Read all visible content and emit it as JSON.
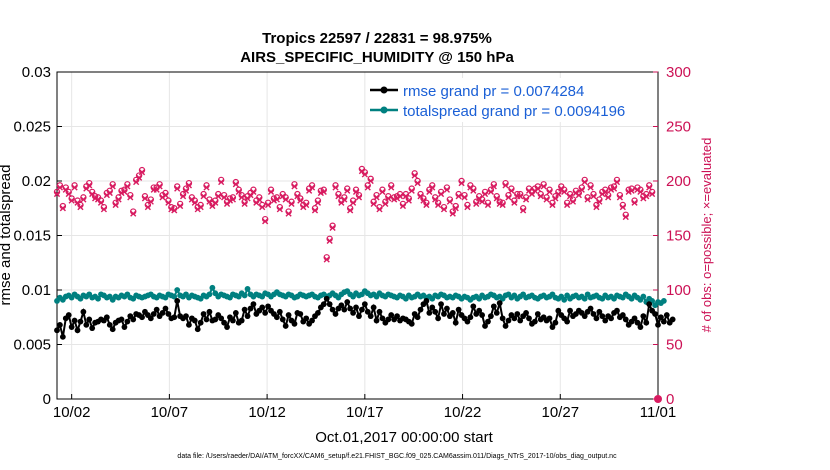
{
  "chart_data": {
    "type": "line",
    "title": "Tropics 22597 / 22831 = 98.975%",
    "subtitle": "AIRS_SPECIFIC_HUMIDITY @ 150 hPa",
    "xlabel": "Oct.01,2017 00:00:00 start",
    "ylabel": "rmse and totalspread",
    "ylabel_right": "# of obs: o=possible; ×=evaluated",
    "footnote": "data file: /Users/raeder/DAI/ATM_forcXX/CAM6_setup/f.e21.FHIST_BGC.f09_025.CAM6assim.011/Diags_NTrS_2017-10/obs_diag_output.nc",
    "xlim": [
      0.25,
      31
    ],
    "ylim": [
      0,
      0.03
    ],
    "ylim_right": [
      0,
      300
    ],
    "x_ticks": [
      1,
      6,
      11,
      16,
      21,
      26,
      31
    ],
    "x_tick_labels": [
      "10/02",
      "10/07",
      "10/12",
      "10/17",
      "10/22",
      "10/27",
      "11/01"
    ],
    "y_ticks": [
      0,
      0.005,
      0.01,
      0.015,
      0.02,
      0.025,
      0.03
    ],
    "y_tick_labels": [
      "0",
      "0.005",
      "0.01",
      "0.015",
      "0.02",
      "0.025",
      "0.03"
    ],
    "y_ticks_right": [
      0,
      50,
      100,
      150,
      200,
      250,
      300
    ],
    "y_tick_labels_right": [
      "0",
      "50",
      "100",
      "150",
      "200",
      "250",
      "300"
    ],
    "grid": true,
    "legend_position": "top-right",
    "colors": {
      "rmse": "#000000",
      "spread": "#008080",
      "obs": "#d81b60",
      "ylabel_right": "#cc1155",
      "legend_text": "#1a5fd6"
    },
    "series": [
      {
        "name": "rmse grand pr = 0.0074284",
        "values": [
          0.0063,
          0.0068,
          0.0057,
          0.0074,
          0.0077,
          0.0066,
          0.0072,
          0.0063,
          0.0071,
          0.008,
          0.0068,
          0.0073,
          0.0065,
          0.007,
          0.0071,
          0.0073,
          0.0072,
          0.0075,
          0.0068,
          0.0064,
          0.007,
          0.0072,
          0.0073,
          0.0066,
          0.0071,
          0.0076,
          0.0073,
          0.0078,
          0.0077,
          0.0075,
          0.008,
          0.0077,
          0.0074,
          0.0078,
          0.0082,
          0.0076,
          0.0079,
          0.0083,
          0.0078,
          0.0074,
          0.0075,
          0.009,
          0.0076,
          0.0074,
          0.0076,
          0.0068,
          0.0074,
          0.0072,
          0.0064,
          0.007,
          0.0078,
          0.0073,
          0.008,
          0.0072,
          0.0073,
          0.0077,
          0.0074,
          0.007,
          0.0066,
          0.0075,
          0.0072,
          0.0079,
          0.007,
          0.0072,
          0.0082,
          0.0076,
          0.0083,
          0.0087,
          0.0078,
          0.0081,
          0.0084,
          0.0079,
          0.0085,
          0.0081,
          0.0078,
          0.0075,
          0.008,
          0.0073,
          0.0067,
          0.0077,
          0.0072,
          0.0069,
          0.0079,
          0.0078,
          0.0071,
          0.0074,
          0.0069,
          0.0072,
          0.0076,
          0.0079,
          0.0084,
          0.0087,
          0.0092,
          0.0087,
          0.0082,
          0.0078,
          0.0083,
          0.0086,
          0.0082,
          0.0089,
          0.0083,
          0.0079,
          0.0084,
          0.0076,
          0.0082,
          0.0087,
          0.008,
          0.0076,
          0.0084,
          0.0072,
          0.008,
          0.0074,
          0.007,
          0.0073,
          0.0077,
          0.0073,
          0.0076,
          0.0072,
          0.0074,
          0.0073,
          0.0071,
          0.0069,
          0.0078,
          0.0075,
          0.0082,
          0.0087,
          0.009,
          0.0079,
          0.0084,
          0.008,
          0.0074,
          0.0087,
          0.0078,
          0.0083,
          0.0076,
          0.0079,
          0.007,
          0.0082,
          0.0077,
          0.0074,
          0.0071,
          0.0075,
          0.0085,
          0.0078,
          0.0081,
          0.0077,
          0.0067,
          0.0071,
          0.0076,
          0.0085,
          0.0079,
          0.0088,
          0.0074,
          0.0067,
          0.0072,
          0.0077,
          0.0074,
          0.0078,
          0.0072,
          0.0076,
          0.0079,
          0.0074,
          0.0069,
          0.0071,
          0.0078,
          0.0073,
          0.0075,
          0.0072,
          0.0074,
          0.0066,
          0.007,
          0.0081,
          0.0077,
          0.0074,
          0.0071,
          0.0081,
          0.0076,
          0.0078,
          0.0081,
          0.0079,
          0.0076,
          0.008,
          0.0083,
          0.0078,
          0.0074,
          0.008,
          0.0076,
          0.0072,
          0.0076,
          0.0074,
          0.0079,
          0.0081,
          0.0075,
          0.0077,
          0.0073,
          0.0068,
          0.0071,
          0.0074,
          0.007,
          0.0066,
          0.0076,
          0.007,
          0.0087,
          0.0081,
          0.0078,
          0.0068,
          0.0075,
          0.0071,
          0.0077,
          0.007,
          0.0073
        ]
      },
      {
        "name": "totalspread grand pr = 0.0094196",
        "values": [
          0.009,
          0.0093,
          0.0091,
          0.0094,
          0.0095,
          0.0093,
          0.0096,
          0.0094,
          0.0092,
          0.0095,
          0.0094,
          0.0096,
          0.0093,
          0.0094,
          0.0092,
          0.0096,
          0.0095,
          0.0093,
          0.0094,
          0.0091,
          0.0094,
          0.0093,
          0.0095,
          0.0094,
          0.0096,
          0.0093,
          0.0092,
          0.0095,
          0.0094,
          0.0093,
          0.0094,
          0.0095,
          0.0096,
          0.0094,
          0.0093,
          0.0095,
          0.0094,
          0.0093,
          0.0096,
          0.0095,
          0.0094,
          0.01,
          0.0095,
          0.0094,
          0.0096,
          0.0093,
          0.0095,
          0.0094,
          0.0093,
          0.0092,
          0.0095,
          0.0094,
          0.0096,
          0.0102,
          0.0097,
          0.0094,
          0.0096,
          0.0095,
          0.0094,
          0.0093,
          0.0096,
          0.0095,
          0.0094,
          0.0097,
          0.0095,
          0.0101,
          0.0096,
          0.0094,
          0.0096,
          0.0095,
          0.0094,
          0.0097,
          0.0096,
          0.0094,
          0.0096,
          0.0098,
          0.0096,
          0.0095,
          0.0094,
          0.0096,
          0.0095,
          0.0093,
          0.0094,
          0.0096,
          0.0095,
          0.0094,
          0.0095,
          0.0096,
          0.0094,
          0.0093,
          0.0095,
          0.0096,
          0.0094,
          0.0095,
          0.0097,
          0.0095,
          0.0093,
          0.0096,
          0.0098,
          0.0099,
          0.0096,
          0.0094,
          0.0097,
          0.0095,
          0.0096,
          0.0099,
          0.0097,
          0.0095,
          0.0096,
          0.0094,
          0.0097,
          0.0095,
          0.0094,
          0.0096,
          0.0095,
          0.0094,
          0.0093,
          0.0095,
          0.0094,
          0.0092,
          0.0095,
          0.0093,
          0.0094,
          0.0096,
          0.0094,
          0.0095,
          0.0093,
          0.0094,
          0.0092,
          0.0095,
          0.0094,
          0.0096,
          0.0095,
          0.0093,
          0.0094,
          0.0093,
          0.0095,
          0.0094,
          0.0092,
          0.0094,
          0.0093,
          0.0091,
          0.0093,
          0.0094,
          0.0092,
          0.0095,
          0.0093,
          0.0094,
          0.0096,
          0.0095,
          0.0093,
          0.0094,
          0.0092,
          0.0095,
          0.0096,
          0.0093,
          0.0095,
          0.0092,
          0.0094,
          0.0096,
          0.0093,
          0.0094,
          0.0095,
          0.0093,
          0.0092,
          0.0094,
          0.0095,
          0.0093,
          0.0094,
          0.0096,
          0.0093,
          0.0092,
          0.0094,
          0.0091,
          0.0095,
          0.0092,
          0.0094,
          0.0095,
          0.0093,
          0.0094,
          0.0092,
          0.0096,
          0.0093,
          0.0094,
          0.0095,
          0.0093,
          0.0092,
          0.0095,
          0.0093,
          0.0094,
          0.0092,
          0.0095,
          0.0094,
          0.0093,
          0.0096,
          0.0094,
          0.0092,
          0.0095,
          0.0093,
          0.0091,
          0.0094,
          0.0089,
          0.0092,
          0.009,
          0.0086,
          0.0089,
          0.0088,
          0.009
        ]
      }
    ],
    "obs_series": [
      {
        "name": "possible",
        "values": [
          190,
          196,
          177,
          194,
          190,
          184,
          196,
          182,
          178,
          185,
          195,
          198,
          190,
          186,
          185,
          182,
          176,
          189,
          191,
          197,
          180,
          185,
          191,
          192,
          197,
          187,
          172,
          201,
          205,
          210,
          186,
          178,
          183,
          194,
          194,
          197,
          187,
          189,
          182,
          176,
          175,
          195,
          179,
          188,
          193,
          198,
          185,
          182,
          176,
          178,
          188,
          196,
          183,
          179,
          182,
          188,
          201,
          187,
          181,
          184,
          185,
          199,
          192,
          187,
          181,
          186,
          189,
          192,
          182,
          185,
          178,
          165,
          180,
          192,
          184,
          185,
          176,
          188,
          185,
          172,
          181,
          197,
          188,
          184,
          178,
          180,
          193,
          196,
          175,
          182,
          191,
          192,
          130,
          147,
          159,
          196,
          188,
          182,
          185,
          193,
          175,
          182,
          192,
          187,
          211,
          208,
          196,
          202,
          181,
          187,
          176,
          192,
          181,
          186,
          196,
          185,
          186,
          188,
          179,
          188,
          184,
          193,
          207,
          200,
          188,
          184,
          180,
          192,
          196,
          185,
          180,
          190,
          176,
          194,
          183,
          172,
          177,
          188,
          200,
          187,
          178,
          196,
          193,
          181,
          186,
          183,
          190,
          180,
          192,
          197,
          186,
          181,
          180,
          198,
          187,
          193,
          182,
          188,
          188,
          175,
          185,
          193,
          190,
          193,
          195,
          188,
          197,
          185,
          192,
          180,
          186,
          190,
          195,
          192,
          180,
          188,
          183,
          191,
          189,
          194,
          201,
          185,
          196,
          188,
          178,
          183,
          190,
          192,
          187,
          194,
          195,
          201,
          187,
          178,
          169,
          192,
          193,
          182,
          194,
          192,
          186,
          188,
          196,
          190
        ]
      },
      {
        "name": "evaluated",
        "values": [
          188,
          194,
          175,
          192,
          188,
          182,
          194,
          180,
          176,
          183,
          193,
          196,
          188,
          184,
          183,
          180,
          174,
          187,
          189,
          195,
          178,
          183,
          189,
          190,
          195,
          185,
          170,
          199,
          203,
          208,
          184,
          176,
          181,
          192,
          192,
          195,
          185,
          187,
          180,
          174,
          173,
          193,
          177,
          186,
          191,
          196,
          183,
          180,
          174,
          176,
          186,
          194,
          181,
          177,
          180,
          186,
          199,
          185,
          179,
          182,
          183,
          197,
          190,
          185,
          179,
          184,
          187,
          190,
          180,
          183,
          176,
          163,
          178,
          190,
          182,
          183,
          174,
          186,
          183,
          170,
          179,
          195,
          186,
          182,
          176,
          178,
          191,
          194,
          173,
          180,
          189,
          190,
          128,
          145,
          157,
          194,
          186,
          180,
          183,
          191,
          173,
          180,
          190,
          185,
          209,
          206,
          194,
          200,
          179,
          185,
          174,
          190,
          179,
          184,
          194,
          183,
          184,
          186,
          177,
          186,
          182,
          191,
          205,
          198,
          186,
          182,
          178,
          190,
          194,
          183,
          178,
          188,
          174,
          192,
          181,
          170,
          175,
          186,
          198,
          185,
          176,
          194,
          191,
          179,
          184,
          181,
          188,
          178,
          190,
          195,
          184,
          179,
          178,
          196,
          185,
          191,
          180,
          186,
          186,
          173,
          183,
          191,
          188,
          191,
          193,
          186,
          195,
          183,
          190,
          178,
          184,
          188,
          193,
          190,
          178,
          186,
          181,
          189,
          187,
          192,
          199,
          183,
          194,
          186,
          176,
          181,
          188,
          190,
          185,
          192,
          193,
          199,
          185,
          176,
          167,
          190,
          191,
          180,
          192,
          190,
          184,
          186,
          194,
          188
        ]
      }
    ],
    "legend": [
      "rmse grand pr = 0.0074284",
      "totalspread grand pr = 0.0094196"
    ]
  }
}
